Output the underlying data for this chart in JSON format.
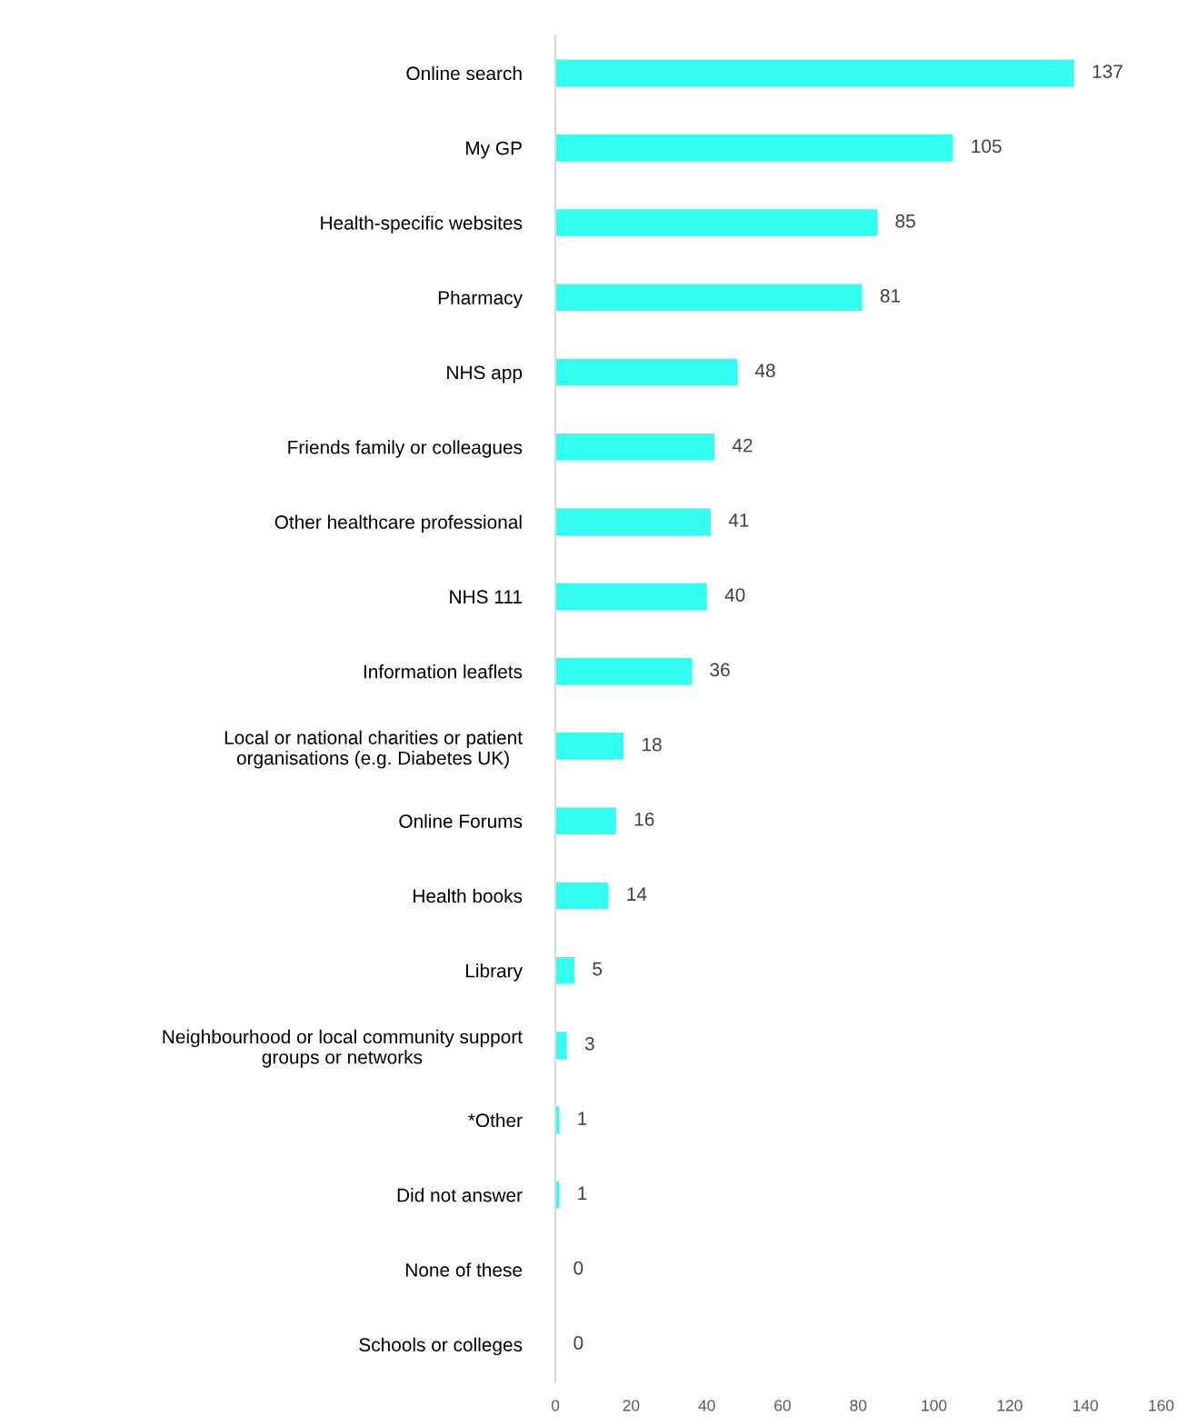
{
  "chart_data": {
    "type": "bar",
    "orientation": "horizontal",
    "categories": [
      "Online search",
      "My GP",
      "Health-specific websites",
      "Pharmacy",
      "NHS app",
      "Friends family or colleagues",
      "Other healthcare professional",
      "NHS 111",
      "Information leaflets",
      "Local or national charities or patient\norganisations (e.g. Diabetes UK)",
      "Online Forums",
      "Health books",
      "Library",
      "Neighbourhood or local community support\ngroups or networks",
      "*Other",
      "Did not answer",
      "None of these",
      "Schools or colleges"
    ],
    "values": [
      137,
      105,
      85,
      81,
      48,
      42,
      41,
      40,
      36,
      18,
      16,
      14,
      5,
      3,
      1,
      1,
      0,
      0
    ],
    "color": "#33fff0",
    "xlim": [
      0,
      160
    ],
    "xticks": [
      0,
      20,
      40,
      60,
      80,
      100,
      120,
      140,
      160
    ],
    "grid": false,
    "legend": false,
    "data_labels": true
  }
}
